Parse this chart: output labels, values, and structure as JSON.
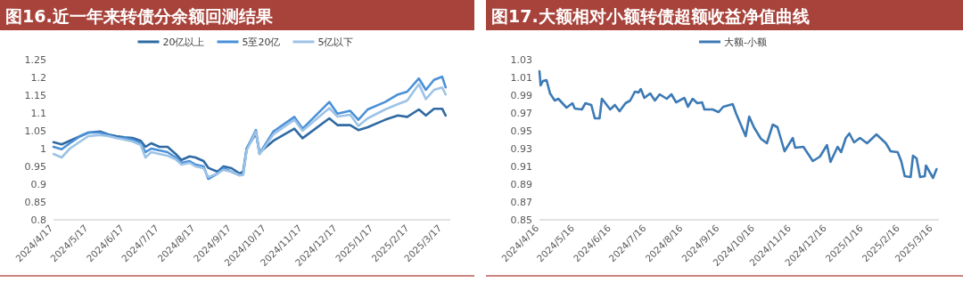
{
  "chart_data": [
    {
      "type": "line",
      "title": "图16.近一年来转债分余额回测结果",
      "legend": "top",
      "xlim": [
        "2024-04-17",
        "2025-03-24"
      ],
      "ylim": [
        0.8,
        1.25
      ],
      "yticks": [
        0.8,
        0.85,
        0.9,
        0.95,
        1,
        1.05,
        1.1,
        1.15,
        1.2,
        1.25
      ],
      "xticks": [
        {
          "value": "2024-04-17",
          "label": "2024/4/17"
        },
        {
          "value": "2024-05-17",
          "label": "2024/5/17"
        },
        {
          "value": "2024-06-17",
          "label": "2024/6/17"
        },
        {
          "value": "2024-07-17",
          "label": "2024/7/17"
        },
        {
          "value": "2024-08-17",
          "label": "2024/8/17"
        },
        {
          "value": "2024-09-17",
          "label": "2024/9/17"
        },
        {
          "value": "2024-10-17",
          "label": "2024/10/17"
        },
        {
          "value": "2024-11-17",
          "label": "2024/11/17"
        },
        {
          "value": "2024-12-17",
          "label": "2024/12/17"
        },
        {
          "value": "2025-01-17",
          "label": "2025/1/17"
        },
        {
          "value": "2025-02-17",
          "label": "2025/2/17"
        },
        {
          "value": "2025-03-17",
          "label": "2025/3/17"
        }
      ],
      "series": [
        {
          "name": "20亿以上",
          "color": "#2f6aa3",
          "x": [
            "2024-04-17",
            "2024-04-24",
            "2024-05-01",
            "2024-05-10",
            "2024-05-17",
            "2024-05-27",
            "2024-06-03",
            "2024-06-10",
            "2024-06-17",
            "2024-06-24",
            "2024-07-01",
            "2024-07-05",
            "2024-07-10",
            "2024-07-17",
            "2024-07-24",
            "2024-07-31",
            "2024-08-05",
            "2024-08-12",
            "2024-08-17",
            "2024-08-24",
            "2024-08-28",
            "2024-09-05",
            "2024-09-10",
            "2024-09-17",
            "2024-09-24",
            "2024-09-27",
            "2024-09-30",
            "2024-10-08",
            "2024-10-11",
            "2024-10-23",
            "2024-11-10",
            "2024-11-17",
            "2024-12-10",
            "2024-12-17",
            "2024-12-28",
            "2025-01-04",
            "2025-01-12",
            "2025-01-27",
            "2025-02-07",
            "2025-02-15",
            "2025-02-25",
            "2025-03-03",
            "2025-03-10",
            "2025-03-17",
            "2025-03-20"
          ],
          "values": [
            1.018,
            1.012,
            1.022,
            1.035,
            1.045,
            1.048,
            1.04,
            1.035,
            1.032,
            1.03,
            1.022,
            1.005,
            1.015,
            1.005,
            1.005,
            0.985,
            0.968,
            0.978,
            0.975,
            0.965,
            0.946,
            0.935,
            0.95,
            0.945,
            0.93,
            0.935,
            1.0,
            1.043,
            0.989,
            1.022,
            1.056,
            1.029,
            1.085,
            1.066,
            1.066,
            1.052,
            1.06,
            1.081,
            1.093,
            1.089,
            1.11,
            1.093,
            1.112,
            1.112,
            1.093
          ]
        },
        {
          "name": "5至20亿",
          "color": "#4a90d9",
          "x": [
            "2024-04-17",
            "2024-04-24",
            "2024-05-01",
            "2024-05-10",
            "2024-05-17",
            "2024-05-27",
            "2024-06-03",
            "2024-06-10",
            "2024-06-17",
            "2024-06-24",
            "2024-07-01",
            "2024-07-05",
            "2024-07-10",
            "2024-07-17",
            "2024-07-24",
            "2024-07-31",
            "2024-08-05",
            "2024-08-12",
            "2024-08-17",
            "2024-08-24",
            "2024-08-28",
            "2024-09-05",
            "2024-09-10",
            "2024-09-17",
            "2024-09-24",
            "2024-09-27",
            "2024-09-30",
            "2024-10-08",
            "2024-10-11",
            "2024-10-23",
            "2024-11-10",
            "2024-11-17",
            "2024-12-10",
            "2024-12-17",
            "2024-12-28",
            "2025-01-04",
            "2025-01-12",
            "2025-01-27",
            "2025-02-07",
            "2025-02-15",
            "2025-02-25",
            "2025-03-03",
            "2025-03-10",
            "2025-03-17",
            "2025-03-20"
          ],
          "values": [
            1.005,
            0.998,
            1.015,
            1.035,
            1.045,
            1.045,
            1.038,
            1.03,
            1.03,
            1.025,
            1.015,
            0.99,
            1.0,
            0.995,
            0.99,
            0.975,
            0.96,
            0.965,
            0.955,
            0.95,
            0.915,
            0.93,
            0.945,
            0.935,
            0.925,
            0.928,
            1.0,
            1.052,
            0.986,
            1.048,
            1.089,
            1.056,
            1.131,
            1.098,
            1.106,
            1.081,
            1.11,
            1.131,
            1.152,
            1.16,
            1.197,
            1.165,
            1.193,
            1.202,
            1.172
          ]
        },
        {
          "name": "5亿以下",
          "color": "#9dc3e6",
          "x": [
            "2024-04-17",
            "2024-04-24",
            "2024-05-01",
            "2024-05-10",
            "2024-05-17",
            "2024-05-27",
            "2024-06-03",
            "2024-06-10",
            "2024-06-17",
            "2024-06-24",
            "2024-07-01",
            "2024-07-05",
            "2024-07-10",
            "2024-07-17",
            "2024-07-24",
            "2024-07-31",
            "2024-08-05",
            "2024-08-12",
            "2024-08-17",
            "2024-08-24",
            "2024-08-28",
            "2024-09-05",
            "2024-09-10",
            "2024-09-17",
            "2024-09-24",
            "2024-09-27",
            "2024-09-30",
            "2024-10-08",
            "2024-10-11",
            "2024-10-23",
            "2024-11-10",
            "2024-11-17",
            "2024-12-10",
            "2024-12-17",
            "2024-12-28",
            "2025-01-04",
            "2025-01-12",
            "2025-01-27",
            "2025-02-07",
            "2025-02-15",
            "2025-02-25",
            "2025-03-03",
            "2025-03-10",
            "2025-03-17",
            "2025-03-20"
          ],
          "values": [
            0.985,
            0.975,
            1.0,
            1.02,
            1.035,
            1.038,
            1.035,
            1.03,
            1.025,
            1.02,
            1.01,
            0.975,
            0.99,
            0.985,
            0.98,
            0.97,
            0.955,
            0.96,
            0.95,
            0.945,
            0.92,
            0.93,
            0.94,
            0.935,
            0.925,
            0.926,
            0.995,
            1.048,
            0.984,
            1.04,
            1.081,
            1.05,
            1.114,
            1.09,
            1.095,
            1.064,
            1.085,
            1.11,
            1.125,
            1.135,
            1.181,
            1.139,
            1.165,
            1.172,
            1.152
          ]
        }
      ]
    },
    {
      "type": "line",
      "title": "图17.大额相对小额转债超额收益净值曲线",
      "legend": "top",
      "xlim": [
        "2024-04-16",
        "2025-03-21"
      ],
      "ylim": [
        0.85,
        1.03
      ],
      "yticks": [
        0.85,
        0.87,
        0.89,
        0.91,
        0.93,
        0.95,
        0.97,
        0.99,
        1.01,
        1.03
      ],
      "xticks": [
        {
          "value": "2024-04-16",
          "label": "2024/4/16"
        },
        {
          "value": "2024-05-16",
          "label": "2024/5/16"
        },
        {
          "value": "2024-06-16",
          "label": "2024/6/16"
        },
        {
          "value": "2024-07-16",
          "label": "2024/7/16"
        },
        {
          "value": "2024-08-16",
          "label": "2024/8/16"
        },
        {
          "value": "2024-09-16",
          "label": "2024/9/16"
        },
        {
          "value": "2024-10-16",
          "label": "2024/10/16"
        },
        {
          "value": "2024-11-16",
          "label": "2024/11/16"
        },
        {
          "value": "2024-12-16",
          "label": "2024/12/16"
        },
        {
          "value": "2025-01-16",
          "label": "2025/1/16"
        },
        {
          "value": "2025-02-16",
          "label": "2025/2/16"
        },
        {
          "value": "2025-03-16",
          "label": "2025/3/16"
        }
      ],
      "series": [
        {
          "name": "大额-小额",
          "color": "#3c7ab5",
          "x": [
            "2024-04-16",
            "2024-04-17",
            "2024-04-19",
            "2024-04-22",
            "2024-04-25",
            "2024-04-29",
            "2024-05-02",
            "2024-05-09",
            "2024-05-14",
            "2024-05-16",
            "2024-05-22",
            "2024-05-25",
            "2024-05-30",
            "2024-06-02",
            "2024-06-06",
            "2024-06-08",
            "2024-06-11",
            "2024-06-15",
            "2024-06-19",
            "2024-06-23",
            "2024-06-28",
            "2024-07-02",
            "2024-07-06",
            "2024-07-09",
            "2024-07-11",
            "2024-07-14",
            "2024-07-19",
            "2024-07-23",
            "2024-07-27",
            "2024-08-02",
            "2024-08-06",
            "2024-08-10",
            "2024-08-17",
            "2024-08-20",
            "2024-08-24",
            "2024-08-28",
            "2024-09-01",
            "2024-09-03",
            "2024-09-10",
            "2024-09-15",
            "2024-09-19",
            "2024-09-27",
            "2024-09-30",
            "2024-10-08",
            "2024-10-11",
            "2024-10-15",
            "2024-10-21",
            "2024-10-26",
            "2024-10-31",
            "2024-11-04",
            "2024-11-10",
            "2024-11-17",
            "2024-11-19",
            "2024-11-26",
            "2024-12-04",
            "2024-12-10",
            "2024-12-16",
            "2024-12-19",
            "2024-12-25",
            "2024-12-28",
            "2025-01-01",
            "2025-01-04",
            "2025-01-08",
            "2025-01-13",
            "2025-01-19",
            "2025-01-27",
            "2025-02-04",
            "2025-02-08",
            "2025-02-14",
            "2025-02-17",
            "2025-02-20",
            "2025-02-25",
            "2025-02-27",
            "2025-03-02",
            "2025-03-05",
            "2025-03-09",
            "2025-03-10",
            "2025-03-16",
            "2025-03-19"
          ],
          "values": [
            1.017,
            1.001,
            1.006,
            1.007,
            0.992,
            0.984,
            0.986,
            0.976,
            0.981,
            0.975,
            0.974,
            0.981,
            0.979,
            0.964,
            0.964,
            0.986,
            0.981,
            0.974,
            0.979,
            0.972,
            0.981,
            0.984,
            0.994,
            0.993,
            0.997,
            0.987,
            0.992,
            0.984,
            0.991,
            0.986,
            0.991,
            0.982,
            0.987,
            0.977,
            0.986,
            0.981,
            0.982,
            0.974,
            0.974,
            0.971,
            0.977,
            0.98,
            0.969,
            0.944,
            0.966,
            0.954,
            0.941,
            0.936,
            0.957,
            0.954,
            0.927,
            0.942,
            0.931,
            0.932,
            0.916,
            0.921,
            0.934,
            0.915,
            0.932,
            0.926,
            0.942,
            0.947,
            0.937,
            0.942,
            0.936,
            0.946,
            0.936,
            0.927,
            0.926,
            0.916,
            0.899,
            0.898,
            0.922,
            0.919,
            0.898,
            0.899,
            0.911,
            0.897,
            0.907
          ]
        }
      ]
    }
  ]
}
